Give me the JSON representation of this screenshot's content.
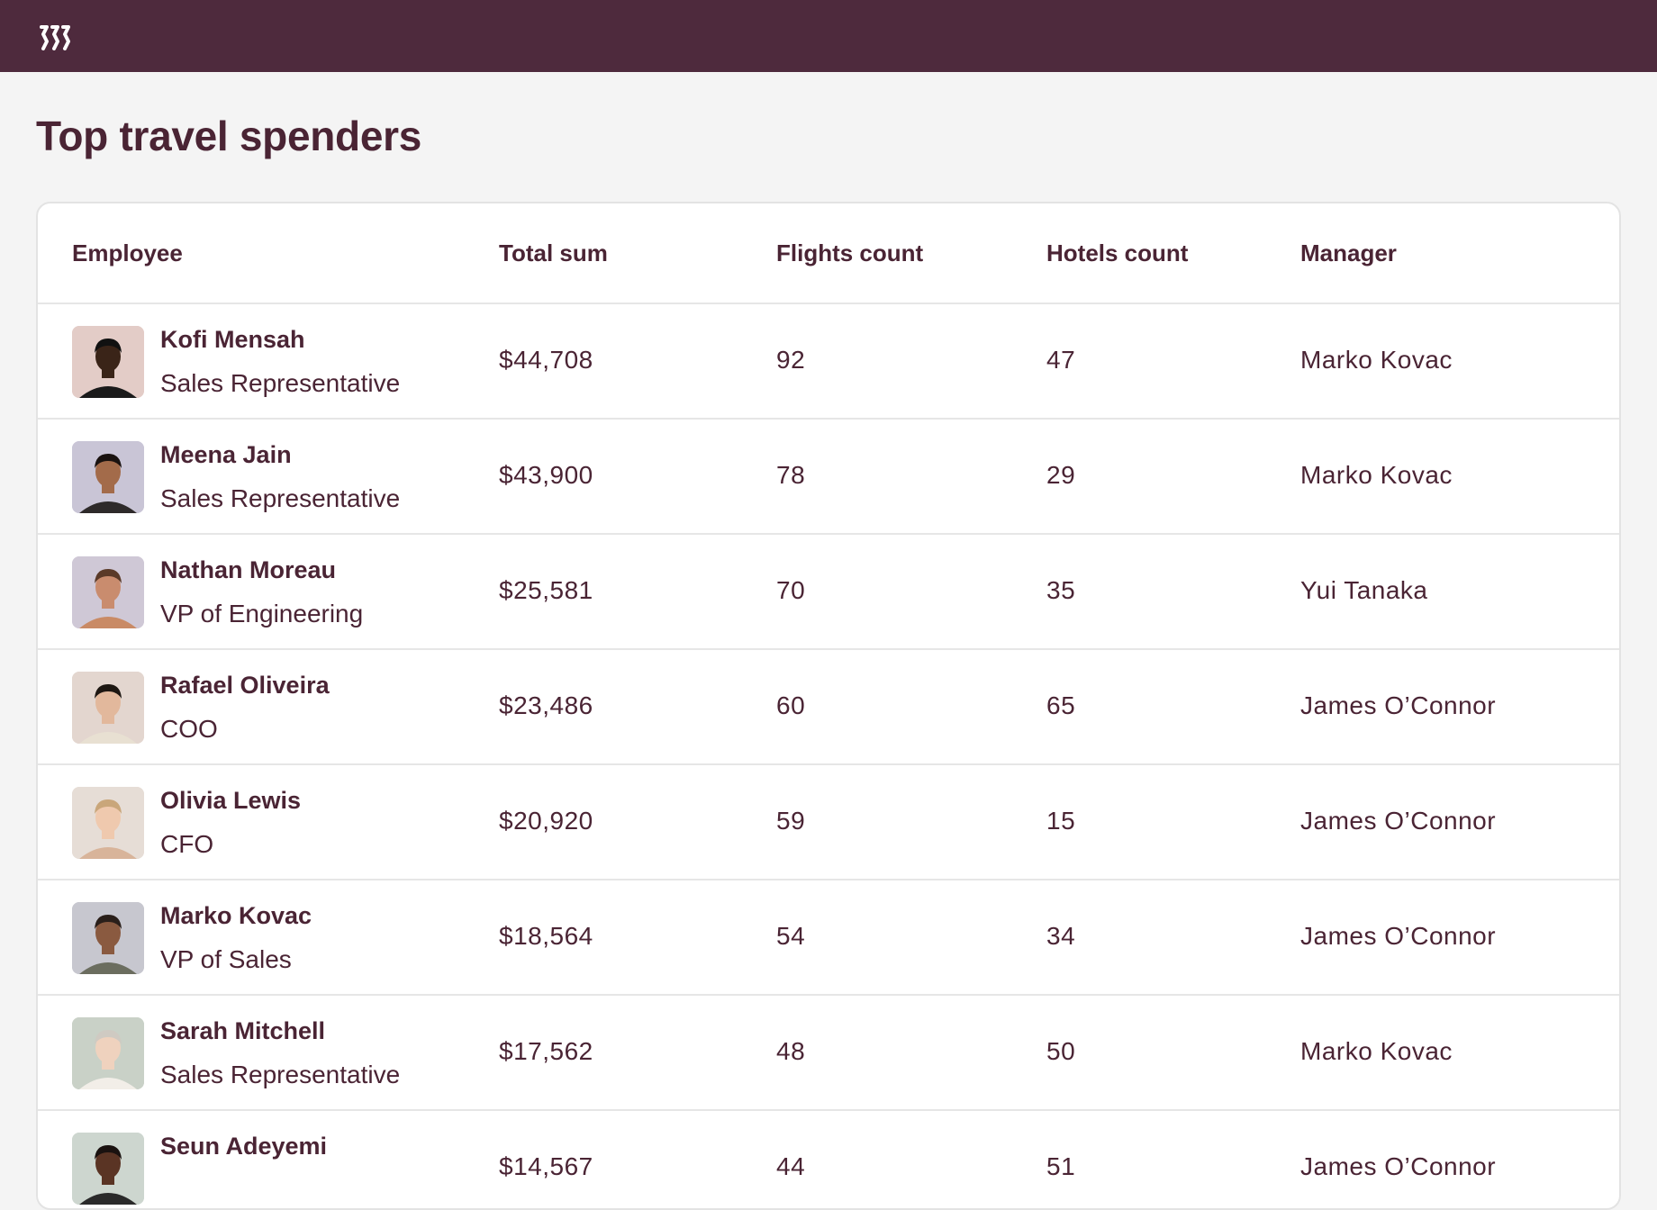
{
  "page": {
    "title": "Top travel spenders"
  },
  "brand": {
    "logo_icon": "brand-logo-icon",
    "header_color": "#4e2a3d"
  },
  "table": {
    "headers": {
      "employee": "Employee",
      "total_sum": "Total sum",
      "flights_count": "Flights count",
      "hotels_count": "Hotels count",
      "manager": "Manager"
    },
    "rows": [
      {
        "name": "Kofi Mensah",
        "title": "Sales Representative",
        "total": "$44,708",
        "flights": "92",
        "hotels": "47",
        "manager": "Marko Kovac"
      },
      {
        "name": "Meena Jain",
        "title": "Sales Representative",
        "total": "$43,900",
        "flights": "78",
        "hotels": "29",
        "manager": "Marko Kovac"
      },
      {
        "name": "Nathan Moreau",
        "title": "VP of Engineering",
        "total": "$25,581",
        "flights": "70",
        "hotels": "35",
        "manager": "Yui Tanaka"
      },
      {
        "name": "Rafael Oliveira",
        "title": "COO",
        "total": "$23,486",
        "flights": "60",
        "hotels": "65",
        "manager": "James O’Connor"
      },
      {
        "name": "Olivia Lewis",
        "title": "CFO",
        "total": "$20,920",
        "flights": "59",
        "hotels": "15",
        "manager": "James O’Connor"
      },
      {
        "name": "Marko Kovac",
        "title": "VP of Sales",
        "total": "$18,564",
        "flights": "54",
        "hotels": "34",
        "manager": "James O’Connor"
      },
      {
        "name": "Sarah Mitchell",
        "title": "Sales Representative",
        "total": "$17,562",
        "flights": "48",
        "hotels": "50",
        "manager": "Marko Kovac"
      },
      {
        "name": "Seun Adeyemi",
        "title": "",
        "total": "$14,567",
        "flights": "44",
        "hotels": "51",
        "manager": "James O’Connor"
      }
    ]
  }
}
